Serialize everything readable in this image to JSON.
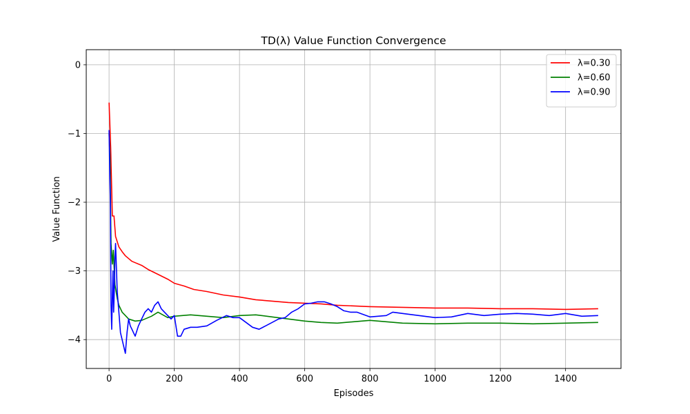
{
  "chart_data": {
    "type": "line",
    "title": "TD(λ) Value Function Convergence",
    "xlabel": "Episodes",
    "ylabel": "Value Function",
    "xlim": [
      -70,
      1570
    ],
    "ylim": [
      -4.42,
      0.22
    ],
    "xticks": [
      0,
      200,
      400,
      600,
      800,
      1000,
      1200,
      1400
    ],
    "yticks": [
      0,
      -1,
      -2,
      -3,
      -4
    ],
    "ytick_labels": [
      "0",
      "−1",
      "−2",
      "−3",
      "−4"
    ],
    "grid": true,
    "legend_position": "top-right",
    "series": [
      {
        "name": "λ=0.30",
        "color": "#ff0000",
        "x": [
          0,
          5,
          10,
          15,
          20,
          30,
          40,
          50,
          60,
          70,
          80,
          100,
          120,
          150,
          180,
          200,
          230,
          260,
          300,
          350,
          400,
          450,
          500,
          550,
          600,
          650,
          700,
          800,
          900,
          1000,
          1100,
          1200,
          1300,
          1400,
          1500
        ],
        "y": [
          -0.55,
          -1.2,
          -2.2,
          -2.2,
          -2.5,
          -2.65,
          -2.72,
          -2.78,
          -2.82,
          -2.86,
          -2.88,
          -2.92,
          -2.98,
          -3.05,
          -3.12,
          -3.18,
          -3.22,
          -3.27,
          -3.3,
          -3.35,
          -3.38,
          -3.42,
          -3.44,
          -3.46,
          -3.47,
          -3.48,
          -3.5,
          -3.52,
          -3.53,
          -3.54,
          -3.54,
          -3.55,
          -3.55,
          -3.56,
          -3.55
        ]
      },
      {
        "name": "λ=0.60",
        "color": "#008000",
        "x": [
          0,
          3,
          6,
          10,
          13,
          18,
          25,
          30,
          40,
          50,
          60,
          80,
          100,
          130,
          150,
          180,
          200,
          250,
          300,
          350,
          400,
          450,
          500,
          550,
          600,
          650,
          700,
          750,
          800,
          900,
          1000,
          1100,
          1200,
          1300,
          1400,
          1500
        ],
        "y": [
          -1.0,
          -1.4,
          -2.6,
          -2.9,
          -2.7,
          -3.2,
          -3.4,
          -3.5,
          -3.6,
          -3.65,
          -3.7,
          -3.73,
          -3.72,
          -3.66,
          -3.6,
          -3.68,
          -3.66,
          -3.64,
          -3.66,
          -3.68,
          -3.65,
          -3.64,
          -3.67,
          -3.7,
          -3.73,
          -3.75,
          -3.76,
          -3.74,
          -3.72,
          -3.76,
          -3.77,
          -3.76,
          -3.76,
          -3.77,
          -3.76,
          -3.75
        ]
      },
      {
        "name": "λ=0.90",
        "color": "#0000ff",
        "x": [
          0,
          2,
          4,
          6,
          8,
          10,
          12,
          14,
          16,
          18,
          20,
          25,
          30,
          35,
          40,
          45,
          50,
          55,
          60,
          65,
          70,
          75,
          80,
          90,
          100,
          110,
          120,
          130,
          140,
          150,
          160,
          170,
          180,
          190,
          200,
          210,
          220,
          230,
          250,
          270,
          300,
          330,
          360,
          380,
          400,
          420,
          440,
          460,
          480,
          500,
          520,
          540,
          560,
          580,
          600,
          620,
          640,
          660,
          680,
          700,
          720,
          740,
          760,
          800,
          850,
          870,
          900,
          950,
          1000,
          1050,
          1100,
          1150,
          1200,
          1250,
          1300,
          1350,
          1400,
          1450,
          1500
        ],
        "y": [
          -0.95,
          -1.5,
          -2.0,
          -3.5,
          -3.85,
          -3.4,
          -3.0,
          -3.6,
          -3.3,
          -2.8,
          -2.6,
          -3.3,
          -3.6,
          -3.9,
          -4.0,
          -4.1,
          -4.2,
          -3.9,
          -3.7,
          -3.8,
          -3.85,
          -3.9,
          -3.95,
          -3.8,
          -3.7,
          -3.6,
          -3.55,
          -3.6,
          -3.5,
          -3.45,
          -3.55,
          -3.6,
          -3.65,
          -3.7,
          -3.65,
          -3.95,
          -3.95,
          -3.85,
          -3.82,
          -3.82,
          -3.8,
          -3.72,
          -3.65,
          -3.68,
          -3.68,
          -3.75,
          -3.82,
          -3.85,
          -3.8,
          -3.75,
          -3.7,
          -3.68,
          -3.6,
          -3.55,
          -3.48,
          -3.47,
          -3.45,
          -3.45,
          -3.48,
          -3.52,
          -3.58,
          -3.6,
          -3.6,
          -3.67,
          -3.65,
          -3.6,
          -3.62,
          -3.65,
          -3.68,
          -3.67,
          -3.62,
          -3.65,
          -3.63,
          -3.62,
          -3.63,
          -3.65,
          -3.62,
          -3.66,
          -3.65
        ]
      }
    ]
  }
}
